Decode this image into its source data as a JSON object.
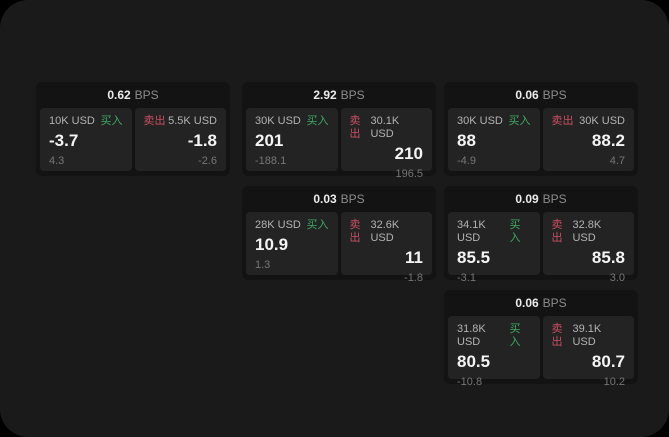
{
  "labels": {
    "buy": "买入",
    "sell": "卖出",
    "bps_unit": "BPS"
  },
  "colors": {
    "page_outside": "#000000",
    "window_bg": "#1a1a1a",
    "card_bg": "#131313",
    "panel_bg": "#232323",
    "buy_green": "#3fa862",
    "sell_red": "#c74f63",
    "value_text": "#f4f4f4",
    "label_text": "#b3b3b3",
    "sub_text": "#767676"
  },
  "cards": [
    {
      "bps": "0.62",
      "buy": {
        "amount": "10K USD",
        "value": "-3.7",
        "sub": "4.3"
      },
      "sell": {
        "amount": "5.5K USD",
        "value": "-1.8",
        "sub": "-2.6"
      }
    },
    {
      "bps": "2.92",
      "buy": {
        "amount": "30K USD",
        "value": "201",
        "sub": "-188.1"
      },
      "sell": {
        "amount": "30.1K USD",
        "value": "210",
        "sub": "196.5"
      }
    },
    {
      "bps": "0.06",
      "buy": {
        "amount": "30K USD",
        "value": "88",
        "sub": "-4.9"
      },
      "sell": {
        "amount": "30K USD",
        "value": "88.2",
        "sub": "4.7"
      }
    },
    {
      "bps": "0.03",
      "buy": {
        "amount": "28K USD",
        "value": "10.9",
        "sub": "1.3"
      },
      "sell": {
        "amount": "32.6K USD",
        "value": "11",
        "sub": "-1.8"
      }
    },
    {
      "bps": "0.09",
      "buy": {
        "amount": "34.1K USD",
        "value": "85.5",
        "sub": "-3.1"
      },
      "sell": {
        "amount": "32.8K USD",
        "value": "85.8",
        "sub": "3.0"
      }
    },
    {
      "bps": "0.06",
      "buy": {
        "amount": "31.8K USD",
        "value": "80.5",
        "sub": "-10.8"
      },
      "sell": {
        "amount": "39.1K USD",
        "value": "80.7",
        "sub": "10.2"
      }
    }
  ]
}
